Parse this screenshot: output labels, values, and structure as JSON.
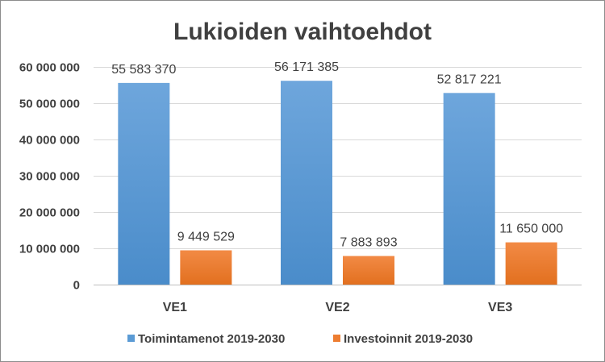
{
  "chart_data": {
    "type": "bar",
    "title": "Lukioiden vaihtoehdot",
    "categories": [
      "VE1",
      "VE2",
      "VE3"
    ],
    "series": [
      {
        "name": "Toimintamenot 2019-2030",
        "values": [
          55583370,
          56171385,
          52817221
        ],
        "labels": [
          "55 583 370",
          "56 171 385",
          "52 817 221"
        ],
        "color": "#5b9bd5"
      },
      {
        "name": "Investoinnit 2019-2030",
        "values": [
          9449529,
          7883893,
          11650000
        ],
        "labels": [
          "9 449 529",
          "7 883 893",
          "11 650 000"
        ],
        "color": "#ed7d31"
      }
    ],
    "ylim": [
      0,
      60000000
    ],
    "yticks": [
      0,
      10000000,
      20000000,
      30000000,
      40000000,
      50000000,
      60000000
    ],
    "ytick_labels": [
      "0",
      "10 000 000",
      "20 000 000",
      "30 000 000",
      "40 000 000",
      "50 000 000",
      "60 000 000"
    ],
    "xlabel": "",
    "ylabel": "",
    "grid": true,
    "legend_position": "bottom"
  }
}
